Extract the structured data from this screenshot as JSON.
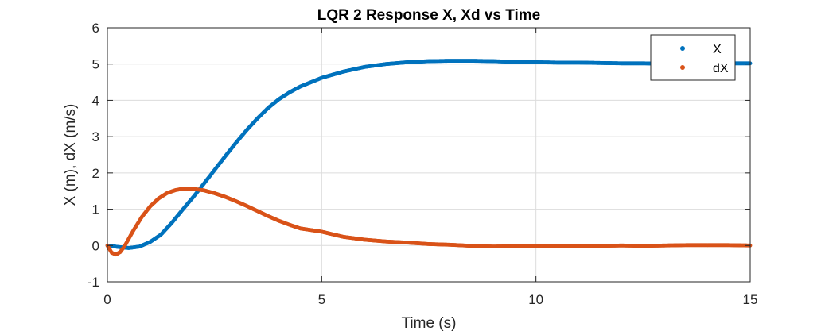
{
  "chart_data": {
    "type": "scatter",
    "title": "LQR 2 Response  X, Xd vs Time",
    "xlabel": "Time (s)",
    "ylabel": "X (m), dX (m/s)",
    "xlim": [
      0,
      15
    ],
    "ylim": [
      -1,
      6
    ],
    "xticks": [
      0,
      5,
      10,
      15
    ],
    "yticks": [
      -1,
      0,
      1,
      2,
      3,
      4,
      5,
      6
    ],
    "xtick_labels": [
      "0",
      "5",
      "10",
      "15"
    ],
    "ytick_labels": [
      "-1",
      "0",
      "1",
      "2",
      "3",
      "4",
      "5",
      "6"
    ],
    "grid": true,
    "legend": "top-right",
    "series": [
      {
        "name": "X",
        "color": "#0072BD",
        "x": [
          0,
          0.25,
          0.5,
          0.75,
          1.0,
          1.25,
          1.5,
          1.75,
          2.0,
          2.25,
          2.5,
          2.75,
          3.0,
          3.25,
          3.5,
          3.75,
          4.0,
          4.25,
          4.5,
          5.0,
          5.5,
          6.0,
          6.5,
          7.0,
          7.5,
          8.0,
          8.5,
          9.0,
          9.5,
          10.0,
          10.5,
          11.0,
          11.5,
          12.0,
          12.5,
          13.0,
          13.5,
          14.0,
          14.5,
          15.0
        ],
        "y": [
          0.0,
          -0.04,
          -0.07,
          -0.03,
          0.1,
          0.3,
          0.62,
          0.98,
          1.33,
          1.7,
          2.08,
          2.46,
          2.83,
          3.18,
          3.5,
          3.79,
          4.03,
          4.22,
          4.38,
          4.62,
          4.79,
          4.92,
          5.0,
          5.05,
          5.08,
          5.09,
          5.09,
          5.08,
          5.06,
          5.05,
          5.04,
          5.04,
          5.03,
          5.02,
          5.02,
          5.01,
          5.01,
          5.01,
          5.02,
          5.02
        ]
      },
      {
        "name": "dX",
        "color": "#D95319",
        "x": [
          0,
          0.1,
          0.2,
          0.3,
          0.4,
          0.6,
          0.8,
          1.0,
          1.2,
          1.4,
          1.6,
          1.8,
          2.0,
          2.25,
          2.5,
          2.75,
          3.0,
          3.25,
          3.5,
          3.75,
          4.0,
          4.25,
          4.5,
          5.0,
          5.5,
          6.0,
          6.5,
          7.0,
          7.5,
          8.0,
          8.5,
          9.0,
          9.5,
          10.0,
          10.5,
          11.0,
          11.5,
          12.0,
          12.5,
          13.0,
          13.5,
          14.0,
          14.5,
          15.0
        ],
        "y": [
          0.0,
          -0.2,
          -0.25,
          -0.18,
          -0.02,
          0.4,
          0.78,
          1.08,
          1.3,
          1.45,
          1.53,
          1.57,
          1.56,
          1.52,
          1.44,
          1.34,
          1.22,
          1.09,
          0.95,
          0.81,
          0.68,
          0.57,
          0.47,
          0.38,
          0.24,
          0.16,
          0.11,
          0.08,
          0.04,
          0.02,
          -0.01,
          -0.03,
          -0.02,
          -0.01,
          -0.01,
          -0.02,
          -0.01,
          0.0,
          -0.01,
          0.0,
          0.01,
          0.01,
          0.01,
          0.0
        ]
      }
    ]
  }
}
